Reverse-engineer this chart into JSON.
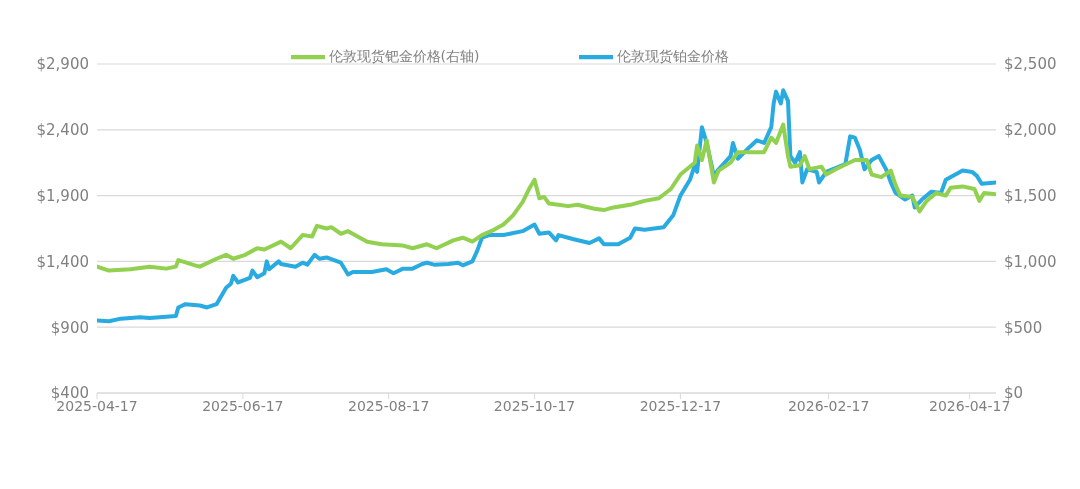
{
  "chart_data": {
    "type": "line",
    "xlim": [
      "2025-04-17",
      "2026-04-28"
    ],
    "xticks": [
      "2025-04-17",
      "2025-06-17",
      "2025-08-17",
      "2025-10-17",
      "2025-12-17",
      "2026-02-17",
      "2026-04-17"
    ],
    "ylim": [
      400,
      2900
    ],
    "yticks": [
      {
        "value": 400,
        "label": "$400"
      },
      {
        "value": 900,
        "label": "$900"
      },
      {
        "value": 1400,
        "label": "$1,400"
      },
      {
        "value": 1900,
        "label": "$1,900"
      },
      {
        "value": 2400,
        "label": "$2,400"
      },
      {
        "value": 2900,
        "label": "$2,900"
      }
    ],
    "y2lim": [
      0,
      2500
    ],
    "y2ticks": [
      {
        "value": 0,
        "label": "$0"
      },
      {
        "value": 500,
        "label": "$500"
      },
      {
        "value": 1000,
        "label": "$1,000"
      },
      {
        "value": 1500,
        "label": "$1,500"
      },
      {
        "value": 2000,
        "label": "$2,000"
      },
      {
        "value": 2500,
        "label": "$2,500"
      }
    ],
    "grid": "y",
    "legend": "top",
    "marker": "none",
    "line_style": "solid",
    "series": [
      {
        "name": "伦敦现货铂金价格",
        "color": "#29abe2",
        "x": [
          "2025-04-17",
          "2025-04-22",
          "2025-04-27",
          "2025-05-05",
          "2025-05-09",
          "2025-05-16",
          "2025-05-20",
          "2025-05-21",
          "2025-05-24",
          "2025-05-30",
          "2025-06-02",
          "2025-06-06",
          "2025-06-10",
          "2025-06-12",
          "2025-06-13",
          "2025-06-15",
          "2025-06-20",
          "2025-06-21",
          "2025-06-23",
          "2025-06-26",
          "2025-06-27",
          "2025-06-28",
          "2025-07-02",
          "2025-07-03",
          "2025-07-09",
          "2025-07-12",
          "2025-07-14",
          "2025-07-17",
          "2025-07-19",
          "2025-07-22",
          "2025-07-28",
          "2025-07-31",
          "2025-08-02",
          "2025-08-10",
          "2025-08-16",
          "2025-08-19",
          "2025-08-23",
          "2025-08-27",
          "2025-08-31",
          "2025-09-02",
          "2025-09-05",
          "2025-09-11",
          "2025-09-15",
          "2025-09-17",
          "2025-09-21",
          "2025-09-23",
          "2025-09-25",
          "2025-09-28",
          "2025-10-04",
          "2025-10-12",
          "2025-10-17",
          "2025-10-19",
          "2025-10-23",
          "2025-10-26",
          "2025-10-27",
          "2025-11-02",
          "2025-11-09",
          "2025-11-13",
          "2025-11-15",
          "2025-11-21",
          "2025-11-26",
          "2025-11-28",
          "2025-12-02",
          "2025-12-10",
          "2025-12-14",
          "2025-12-17",
          "2025-12-21",
          "2025-12-23",
          "2025-12-24",
          "2025-12-26",
          "2025-12-28",
          "2025-12-31",
          "2026-01-02",
          "2026-01-07",
          "2026-01-08",
          "2026-01-10",
          "2026-01-15",
          "2026-01-18",
          "2026-01-21",
          "2026-01-24",
          "2026-01-25",
          "2026-01-26",
          "2026-01-28",
          "2026-01-29",
          "2026-01-31",
          "2026-02-01",
          "2026-02-03",
          "2026-02-05",
          "2026-02-06",
          "2026-02-08",
          "2026-02-12",
          "2026-02-13",
          "2026-02-16",
          "2026-02-24",
          "2026-02-26",
          "2026-02-28",
          "2026-03-02",
          "2026-03-04",
          "2026-03-07",
          "2026-03-10",
          "2026-03-13",
          "2026-03-15",
          "2026-03-17",
          "2026-03-21",
          "2026-03-24",
          "2026-03-25",
          "2026-03-28",
          "2026-04-01",
          "2026-04-05",
          "2026-04-07",
          "2026-04-12",
          "2026-04-14",
          "2026-04-18",
          "2026-04-20",
          "2026-04-22",
          "2026-04-28"
        ],
        "values": [
          950,
          945,
          965,
          975,
          970,
          980,
          985,
          1050,
          1075,
          1065,
          1050,
          1075,
          1200,
          1230,
          1290,
          1240,
          1275,
          1330,
          1280,
          1310,
          1400,
          1340,
          1400,
          1380,
          1360,
          1390,
          1375,
          1450,
          1420,
          1430,
          1390,
          1300,
          1320,
          1320,
          1340,
          1310,
          1345,
          1345,
          1380,
          1390,
          1375,
          1380,
          1390,
          1370,
          1400,
          1480,
          1580,
          1600,
          1600,
          1630,
          1680,
          1610,
          1620,
          1560,
          1600,
          1570,
          1540,
          1575,
          1530,
          1530,
          1580,
          1650,
          1640,
          1660,
          1750,
          1900,
          2020,
          2130,
          2080,
          2420,
          2300,
          2050,
          2100,
          2200,
          2300,
          2180,
          2270,
          2320,
          2300,
          2420,
          2600,
          2690,
          2600,
          2700,
          2620,
          2200,
          2150,
          2230,
          2000,
          2100,
          2080,
          2000,
          2080,
          2140,
          2350,
          2340,
          2250,
          2100,
          2170,
          2200,
          2100,
          2000,
          1920,
          1870,
          1900,
          1810,
          1870,
          1930,
          1920,
          2020,
          2070,
          2090,
          2080,
          2050,
          1990,
          2000
        ]
      },
      {
        "name": "伦敦现货钯金价格(右轴)",
        "color": "#92d050",
        "axis": "y2",
        "x": [
          "2025-04-17",
          "2025-04-22",
          "2025-05-01",
          "2025-05-09",
          "2025-05-16",
          "2025-05-20",
          "2025-05-21",
          "2025-05-28",
          "2025-05-30",
          "2025-06-06",
          "2025-06-10",
          "2025-06-13",
          "2025-06-18",
          "2025-06-23",
          "2025-06-26",
          "2025-07-03",
          "2025-07-07",
          "2025-07-12",
          "2025-07-16",
          "2025-07-18",
          "2025-07-22",
          "2025-07-24",
          "2025-07-28",
          "2025-07-31",
          "2025-08-04",
          "2025-08-08",
          "2025-08-14",
          "2025-08-23",
          "2025-08-27",
          "2025-09-02",
          "2025-09-06",
          "2025-09-13",
          "2025-09-17",
          "2025-09-21",
          "2025-09-25",
          "2025-09-30",
          "2025-10-04",
          "2025-10-08",
          "2025-10-12",
          "2025-10-15",
          "2025-10-17",
          "2025-10-19",
          "2025-10-21",
          "2025-10-23",
          "2025-10-27",
          "2025-10-31",
          "2025-11-04",
          "2025-11-11",
          "2025-11-15",
          "2025-11-19",
          "2025-11-26",
          "2025-12-02",
          "2025-12-08",
          "2025-12-13",
          "2025-12-17",
          "2025-12-23",
          "2025-12-24",
          "2025-12-26",
          "2025-12-28",
          "2025-12-31",
          "2026-01-02",
          "2026-01-07",
          "2026-01-10",
          "2026-01-15",
          "2026-01-21",
          "2026-01-24",
          "2026-01-26",
          "2026-01-29",
          "2026-01-31",
          "2026-02-01",
          "2026-02-05",
          "2026-02-07",
          "2026-02-09",
          "2026-02-14",
          "2026-02-16",
          "2026-02-20",
          "2026-02-28",
          "2026-03-05",
          "2026-03-07",
          "2026-03-11",
          "2026-03-15",
          "2026-03-17",
          "2026-03-19",
          "2026-03-24",
          "2026-03-27",
          "2026-03-30",
          "2026-04-03",
          "2026-04-07",
          "2026-04-09",
          "2026-04-14",
          "2026-04-19",
          "2026-04-21",
          "2026-04-23",
          "2026-04-28"
        ],
        "values": [
          960,
          930,
          940,
          960,
          945,
          960,
          1010,
          970,
          960,
          1020,
          1050,
          1020,
          1050,
          1100,
          1090,
          1150,
          1100,
          1200,
          1190,
          1270,
          1250,
          1260,
          1210,
          1230,
          1190,
          1150,
          1130,
          1120,
          1100,
          1130,
          1100,
          1160,
          1180,
          1150,
          1200,
          1240,
          1280,
          1350,
          1450,
          1560,
          1620,
          1480,
          1490,
          1440,
          1430,
          1420,
          1430,
          1400,
          1390,
          1410,
          1430,
          1460,
          1480,
          1550,
          1660,
          1750,
          1880,
          1770,
          1920,
          1600,
          1690,
          1750,
          1830,
          1830,
          1830,
          1940,
          1900,
          2040,
          1800,
          1720,
          1730,
          1800,
          1700,
          1720,
          1660,
          1700,
          1770,
          1770,
          1660,
          1640,
          1690,
          1580,
          1500,
          1490,
          1380,
          1460,
          1520,
          1500,
          1560,
          1570,
          1550,
          1460,
          1520,
          1510
        ]
      }
    ]
  }
}
